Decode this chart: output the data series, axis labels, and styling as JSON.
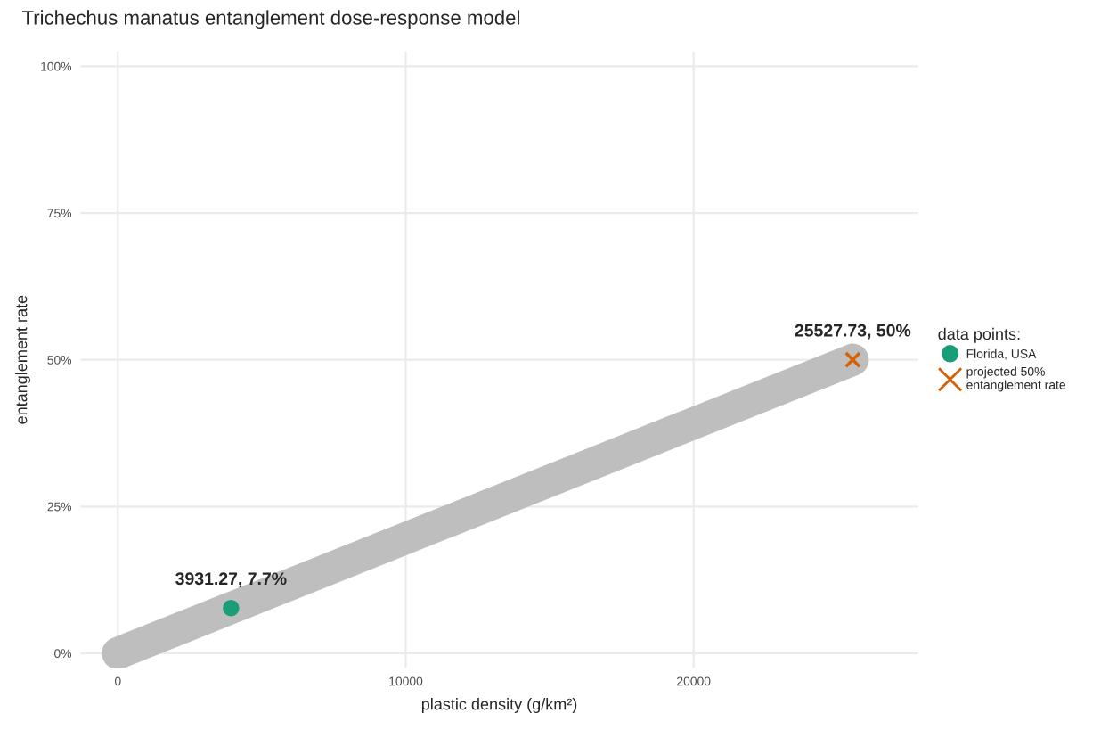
{
  "chart_data": {
    "type": "line",
    "title": "Trichechus manatus entanglement dose-response model",
    "xlabel": "plastic density (g/km²)",
    "ylabel": "entanglement rate",
    "legend_title": "data points:",
    "series": [
      {
        "x": [
          0,
          25527.73
        ],
        "values": [
          0,
          50
        ],
        "color": "#bebebe",
        "marker": "none"
      },
      {
        "type": "scatter",
        "name": "Florida, USA",
        "x": [
          3931.27
        ],
        "values": [
          7.7
        ],
        "color": "#1b9e77",
        "marker": "circle"
      },
      {
        "type": "scatter",
        "name": "projected 50%\nentanglement rate",
        "x": [
          25527.73
        ],
        "values": [
          50
        ],
        "color": "#d95f02",
        "marker": "cross"
      }
    ],
    "annotations": [
      {
        "text": "3931.27, 7.7%",
        "x": 3931.27,
        "y": 7.7
      },
      {
        "text": "25527.73, 50%",
        "x": 25527.73,
        "y": 50
      }
    ],
    "xlim": [
      -1300,
      27800
    ],
    "ylim": [
      -2.5,
      102.5
    ],
    "xticks": [
      0,
      10000,
      20000
    ],
    "yticks": [
      {
        "value": 0,
        "label": "0%"
      },
      {
        "value": 25,
        "label": "25%"
      },
      {
        "value": 50,
        "label": "50%"
      },
      {
        "value": 75,
        "label": "75%"
      },
      {
        "value": 100,
        "label": "100%"
      }
    ],
    "grid": true,
    "legend": "right"
  }
}
